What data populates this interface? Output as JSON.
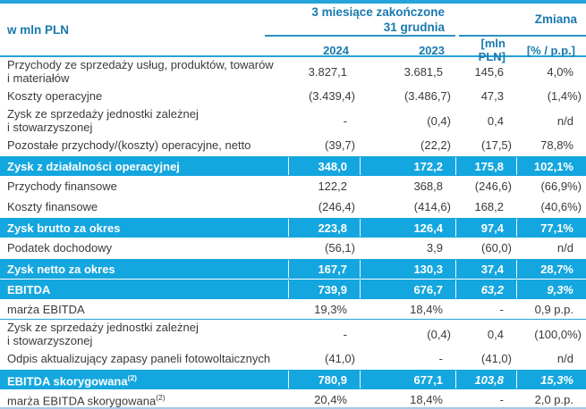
{
  "colors": {
    "highlight_row_bg": "#14A6DE",
    "header_text_blue": "#1879AE",
    "header_underline": "#2E8FC2",
    "top_border": "#25A3DA",
    "bottom_border": "#A5C9E6",
    "body_text": "#3A3A3A"
  },
  "table": {
    "unit_label": "w mln PLN",
    "col_group_period": "3 miesiące zakończone\n31 grudnia",
    "col_group_change": "Zmiana",
    "columns": [
      "2024",
      "2023",
      "[mln PLN]",
      "[% / p.p.]"
    ],
    "rows": [
      {
        "label": "Przychody ze sprzedaży usług, produktów, towarów\ni materiałów",
        "values": [
          "3.827,1",
          "3.681,5",
          "145,6",
          "4,0%"
        ],
        "highlight": false
      },
      {
        "label": "Koszty operacyjne",
        "values": [
          "(3.439,4)",
          "(3.486,7)",
          "47,3",
          "(1,4%)"
        ],
        "highlight": false
      },
      {
        "label": "Zysk ze sprzedaży jednostki zależnej\ni stowarzyszonej",
        "values": [
          "-",
          "(0,4)",
          "0,4",
          "n/d"
        ],
        "highlight": false
      },
      {
        "label": "Pozostałe przychody/(koszty) operacyjne, netto",
        "values": [
          "(39,7)",
          "(22,2)",
          "(17,5)",
          "78,8%"
        ],
        "highlight": false
      },
      {
        "label": "Zysk z działalności operacyjnej",
        "values": [
          "348,0",
          "172,2",
          "175,8",
          "102,1%"
        ],
        "highlight": true
      },
      {
        "label": "Przychody finansowe",
        "values": [
          "122,2",
          "368,8",
          "(246,6)",
          "(66,9%)"
        ],
        "highlight": false
      },
      {
        "label": "Koszty finansowe",
        "values": [
          "(246,4)",
          "(414,6)",
          "168,2",
          "(40,6%)"
        ],
        "highlight": false
      },
      {
        "label": "Zysk brutto za okres",
        "values": [
          "223,8",
          "126,4",
          "97,4",
          "77,1%"
        ],
        "highlight": true
      },
      {
        "label": "Podatek dochodowy",
        "values": [
          "(56,1)",
          "3,9",
          "(60,0)",
          "n/d"
        ],
        "highlight": false
      },
      {
        "label": "Zysk netto za okres",
        "values": [
          "167,7",
          "130,3",
          "37,4",
          "28,7%"
        ],
        "highlight": true
      },
      {
        "label": "EBITDA",
        "values": [
          "739,9",
          "676,7",
          "63,2",
          "9,3%"
        ],
        "highlight": true,
        "italic_change": true
      },
      {
        "label": "marża EBITDA",
        "values": [
          "19,3%",
          "18,4%",
          "-",
          "0,9 p.p."
        ],
        "highlight": false,
        "separator_below": true
      },
      {
        "label": "Zysk ze sprzedaży jednostki zależnej\ni stowarzyszonej",
        "values": [
          "-",
          "(0,4)",
          "0,4",
          "(100,0%)"
        ],
        "highlight": false
      },
      {
        "label": "Odpis aktualizujący zapasy paneli fotowoltaicznych",
        "values": [
          "(41,0)",
          "-",
          "(41,0)",
          "n/d"
        ],
        "highlight": false
      },
      {
        "label": "EBITDA skorygowana",
        "sup": "(2)",
        "values": [
          "780,9",
          "677,1",
          "103,8",
          "15,3%"
        ],
        "highlight": true,
        "italic_change": true
      },
      {
        "label": "marża EBITDA skorygowana",
        "sup": "(2)",
        "values": [
          "20,4%",
          "18,4%",
          "-",
          "2,0 p.p."
        ],
        "highlight": false
      }
    ]
  }
}
